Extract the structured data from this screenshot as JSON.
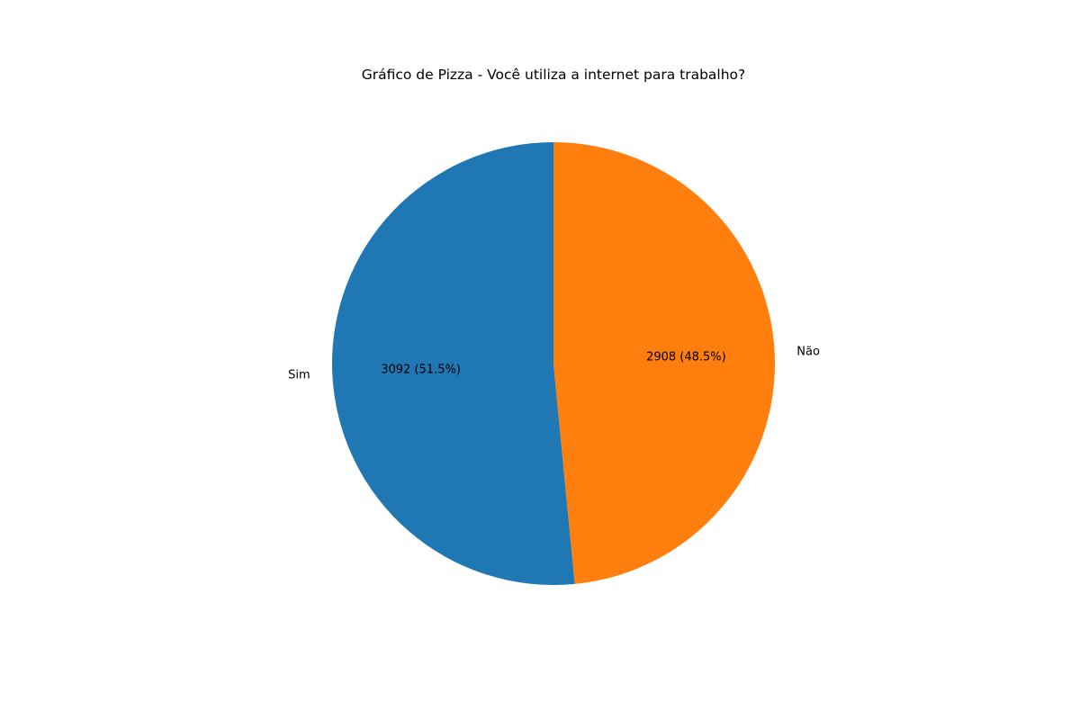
{
  "chart_data": {
    "type": "pie",
    "title": "Gráfico de Pizza - Você utiliza a internet para trabalho?",
    "slices": [
      {
        "label": "Sim",
        "value": 3092,
        "percent": 51.5,
        "display": "3092 (51.5%)",
        "color": "#1f77b4"
      },
      {
        "label": "Não",
        "value": 2908,
        "percent": 48.5,
        "display": "2908 (48.5%)",
        "color": "#ff7f0e"
      }
    ],
    "start_angle_deg": 90,
    "direction": "counterclockwise",
    "legend": "none"
  }
}
